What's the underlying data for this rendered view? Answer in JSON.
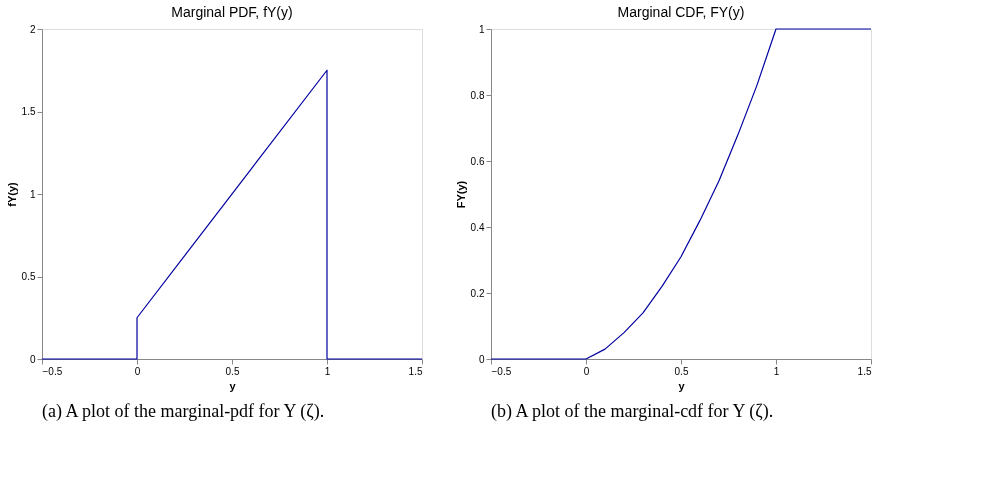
{
  "chart_data": [
    {
      "type": "line",
      "title": "Marginal PDF, fY(y)",
      "xlabel": "y",
      "ylabel": "fY(y)",
      "x": [
        -0.5,
        0,
        0,
        1,
        1,
        1.5
      ],
      "series": [
        {
          "color": "#0000a0",
          "values": [
            0,
            0,
            0.25,
            1.75,
            0,
            0
          ]
        }
      ],
      "xlim": [
        -0.5,
        1.5
      ],
      "xticks": [
        -0.5,
        0,
        0.5,
        1,
        1.5
      ],
      "ylim": [
        0,
        2
      ],
      "yticks": [
        0,
        0.5,
        1,
        1.5,
        2
      ],
      "grid": false,
      "annotations": [
        "(a)  A plot of the marginal-pdf for Y (ζ)."
      ]
    },
    {
      "type": "line",
      "title": "Marginal CDF, FY(y)",
      "xlabel": "y",
      "ylabel": "FY(y)",
      "x": [
        -0.5,
        0,
        0.1,
        0.2,
        0.3,
        0.4,
        0.5,
        0.6,
        0.7,
        0.8,
        0.9,
        1,
        1.5
      ],
      "series": [
        {
          "color": "#0000a0",
          "values": [
            0,
            0,
            0.03,
            0.08,
            0.14,
            0.22,
            0.31,
            0.42,
            0.54,
            0.68,
            0.83,
            1,
            1
          ]
        }
      ],
      "xlim": [
        -0.5,
        1.5
      ],
      "xticks": [
        -0.5,
        0,
        0.5,
        1,
        1.5
      ],
      "ylim": [
        0,
        1
      ],
      "yticks": [
        0,
        0.2,
        0.4,
        0.6,
        0.8,
        1
      ],
      "grid": false,
      "annotations": [
        "(b)  A plot of the marginal-cdf for Y (ζ)."
      ]
    }
  ]
}
